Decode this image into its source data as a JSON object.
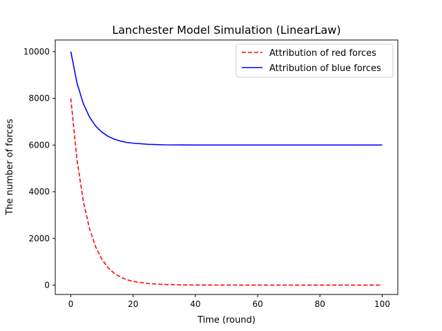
{
  "chart_data": {
    "type": "line",
    "title": "Lanchester Model Simulation (LinearLaw)",
    "xlabel": "Time (round)",
    "ylabel": "The number of forces",
    "xlim": [
      -5,
      105
    ],
    "ylim": [
      -400,
      10500
    ],
    "xticks": [
      0,
      20,
      40,
      60,
      80,
      100
    ],
    "yticks": [
      0,
      2000,
      4000,
      6000,
      8000,
      10000
    ],
    "grid": false,
    "legend_position": "top-right",
    "x": [
      0,
      2,
      4,
      6,
      8,
      10,
      12,
      14,
      16,
      18,
      20,
      25,
      30,
      35,
      40,
      50,
      60,
      70,
      80,
      90,
      100
    ],
    "series": [
      {
        "name": "Attribution of red forces",
        "color": "#ff0000",
        "dash": "dashed",
        "values": [
          8000,
          5350,
          3600,
          2420,
          1630,
          1100,
          740,
          500,
          340,
          230,
          160,
          65,
          28,
          12,
          5,
          1,
          0,
          0,
          0,
          0,
          0
        ]
      },
      {
        "name": "Attribution of blue forces",
        "color": "#0000ff",
        "dash": "solid",
        "values": [
          10000,
          8650,
          7780,
          7200,
          6810,
          6550,
          6370,
          6250,
          6170,
          6110,
          6080,
          6030,
          6010,
          6005,
          6002,
          6000,
          6000,
          6000,
          6000,
          6000,
          6000
        ]
      }
    ]
  }
}
